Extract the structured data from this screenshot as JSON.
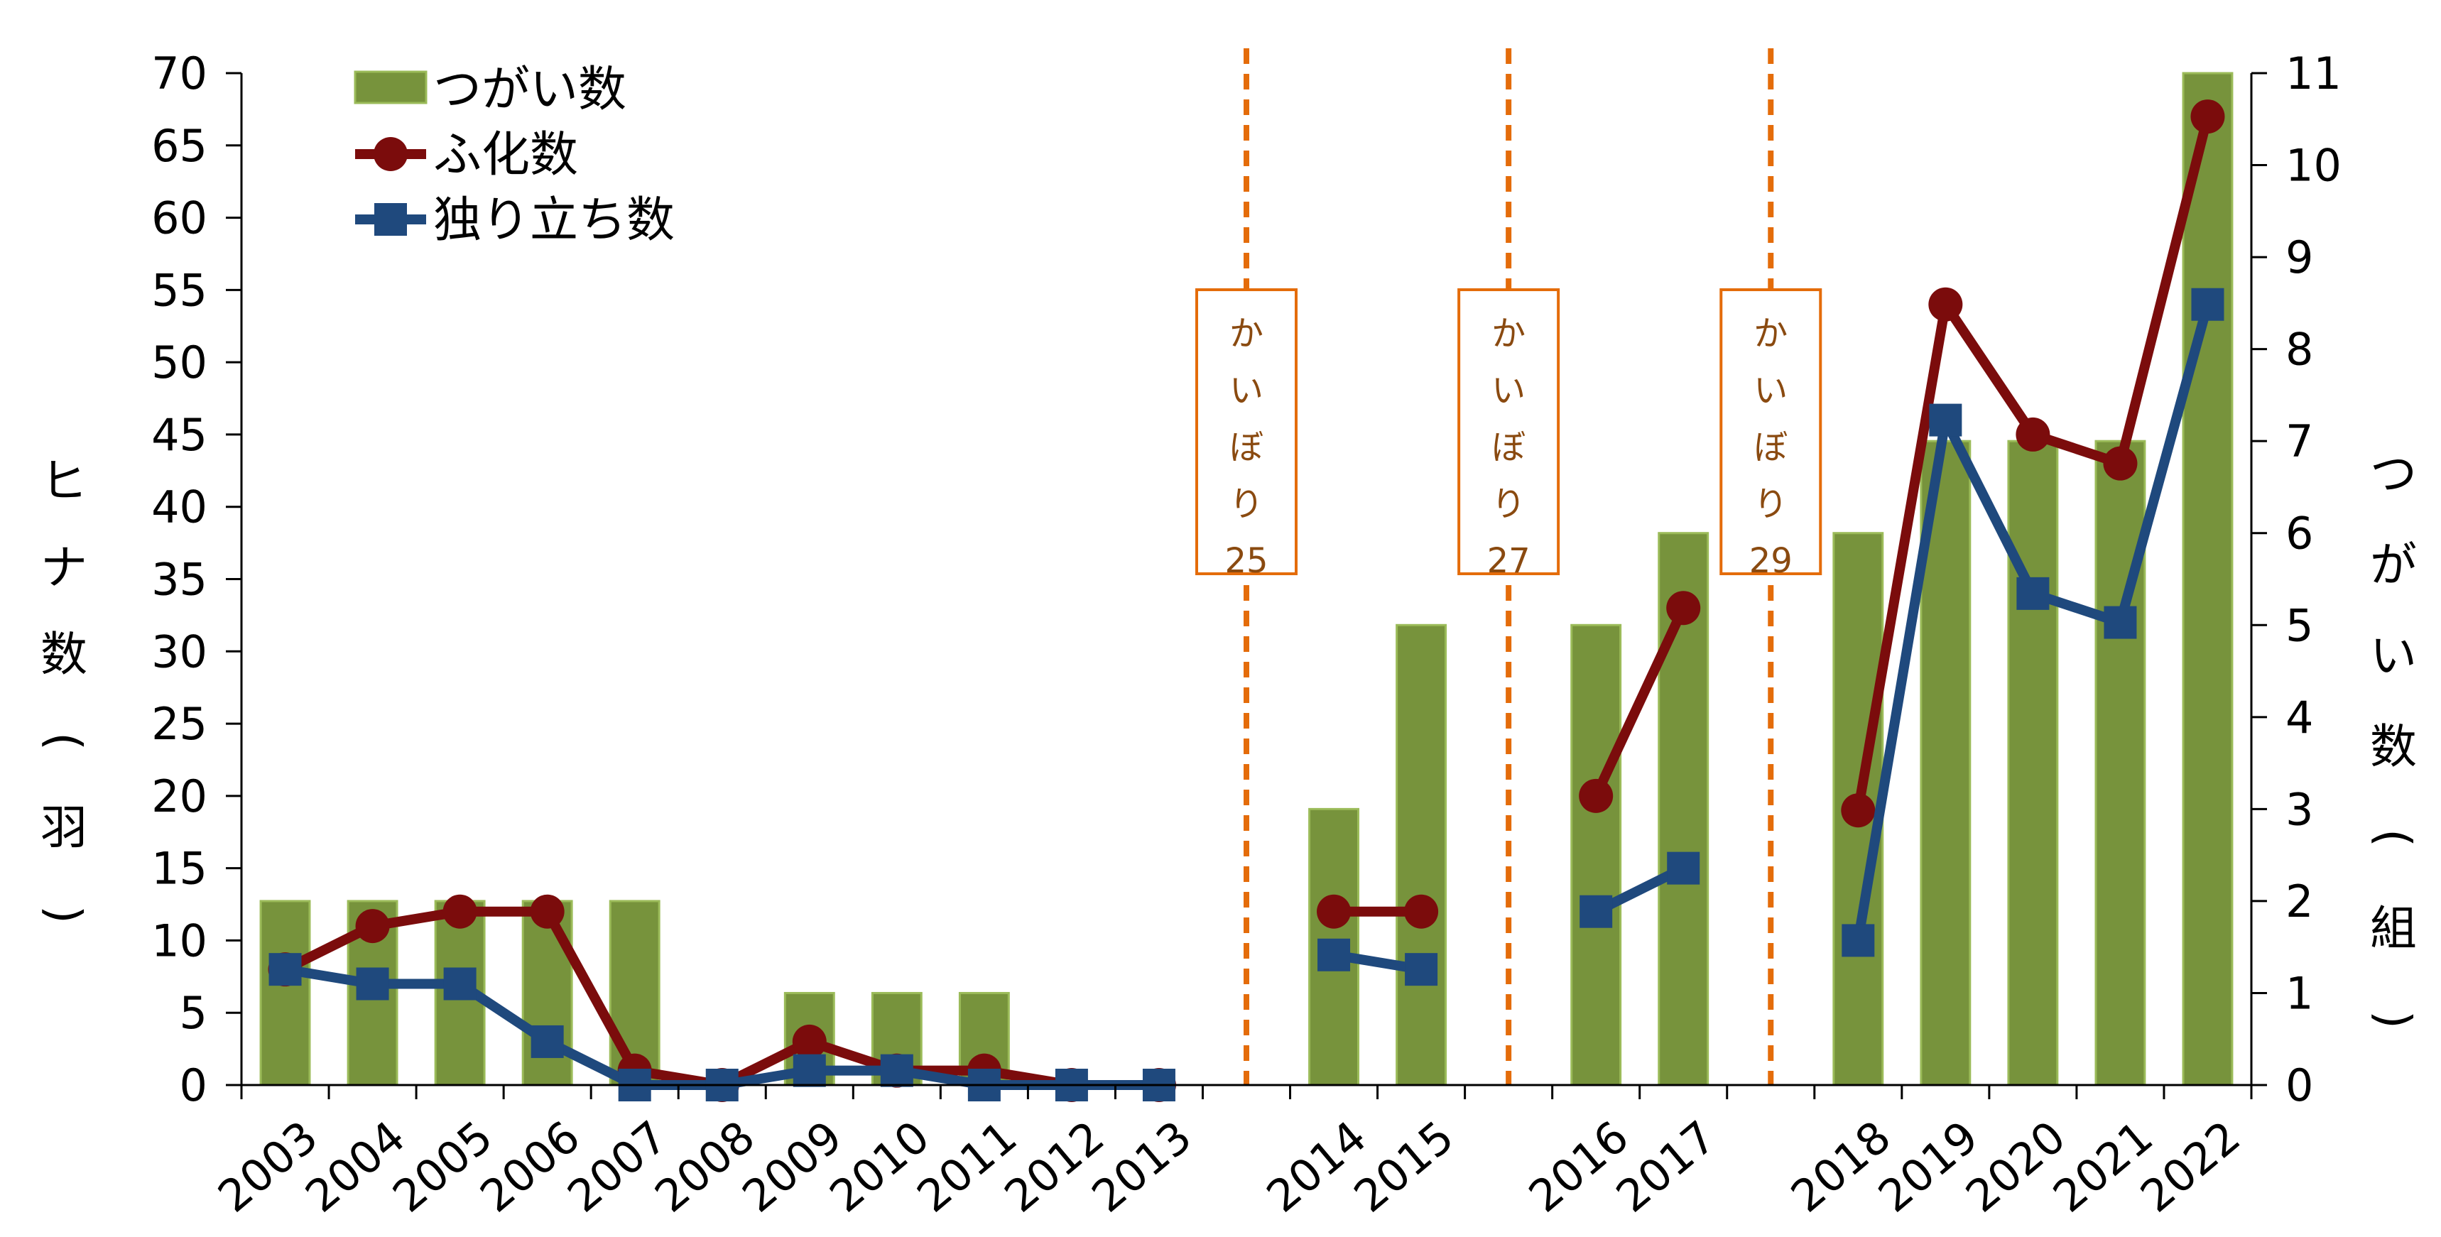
{
  "chart_data": {
    "type": "bar+line",
    "categories": [
      "2003",
      "2004",
      "2005",
      "2006",
      "2007",
      "2008",
      "2009",
      "2010",
      "2011",
      "2012",
      "2013",
      "2014",
      "2015",
      "2016",
      "2017",
      "2018",
      "2019",
      "2020",
      "2021",
      "2022"
    ],
    "series": [
      {
        "name": "つがい数",
        "type": "bar",
        "axis": "right",
        "color": "#77933c",
        "values": [
          2,
          2,
          2,
          2,
          2,
          0,
          1,
          1,
          1,
          0,
          0,
          3,
          5,
          5,
          6,
          6,
          7,
          7,
          7,
          11
        ]
      },
      {
        "name": "ふ化数",
        "type": "line",
        "axis": "left",
        "color": "#7b0c0c",
        "marker": "circle",
        "values": [
          8,
          11,
          12,
          12,
          1,
          0,
          3,
          1,
          1,
          0,
          0,
          12,
          12,
          20,
          33,
          19,
          54,
          45,
          43,
          67
        ]
      },
      {
        "name": "独り立ち数",
        "type": "line",
        "axis": "left",
        "color": "#1f497d",
        "marker": "square",
        "values": [
          8,
          7,
          7,
          3,
          0,
          0,
          1,
          1,
          0,
          0,
          0,
          9,
          8,
          12,
          15,
          10,
          46,
          34,
          32,
          54
        ]
      }
    ],
    "y_left": {
      "label": "ヒナ数（羽）",
      "ylim": [
        0,
        70
      ],
      "ticks": [
        "0",
        "5",
        "10",
        "15",
        "20",
        "25",
        "30",
        "35",
        "40",
        "45",
        "50",
        "55",
        "60",
        "65",
        "70"
      ]
    },
    "y_right": {
      "label": "つがい数（組）",
      "ylim": [
        0,
        11
      ],
      "ticks": [
        "0",
        "1",
        "2",
        "3",
        "4",
        "5",
        "6",
        "7",
        "8",
        "9",
        "10",
        "11"
      ]
    },
    "events": [
      {
        "after": "2013",
        "label_lines": [
          "か",
          "い",
          "ぼ",
          "り",
          "25"
        ],
        "color": "#e46c0a"
      },
      {
        "after": "2015",
        "label_lines": [
          "か",
          "い",
          "ぼ",
          "り",
          "27"
        ],
        "color": "#e46c0a"
      },
      {
        "after": "2017",
        "label_lines": [
          "か",
          "い",
          "ぼ",
          "り",
          "29"
        ],
        "color": "#e46c0a"
      }
    ],
    "legend": {
      "position": "top-left"
    },
    "grid": false
  }
}
